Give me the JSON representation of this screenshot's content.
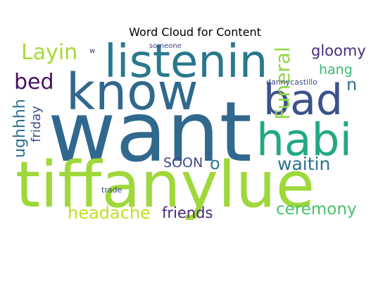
{
  "title": "Word Cloud for Content",
  "colors": {
    "dark_purple": "#440154",
    "indigo": "#3b528b",
    "slate_blue": "#31688e",
    "teal_blue": "#26828e",
    "teal": "#1f9e89",
    "green": "#35b779",
    "lime": "#6ece58",
    "yellow_green": "#b5de2b"
  },
  "words": [
    {
      "id": "want",
      "text": "want",
      "color": "#31688e"
    },
    {
      "id": "tiffanylue",
      "text": "tiffanylue",
      "color": "#9fd83a"
    },
    {
      "id": "know",
      "text": "know",
      "color": "#31688e"
    },
    {
      "id": "listenin",
      "text": "listenin",
      "color": "#2a788e"
    },
    {
      "id": "bad",
      "text": "bad",
      "color": "#3b528b"
    },
    {
      "id": "habi",
      "text": "habi",
      "color": "#22a884"
    },
    {
      "id": "layin",
      "text": "Layin",
      "color": "#a5db36"
    },
    {
      "id": "gloomy",
      "text": "gloomy",
      "color": "#472c7a"
    },
    {
      "id": "hang",
      "text": "hang",
      "color": "#3aba76"
    },
    {
      "id": "bed",
      "text": "bed",
      "color": "#471063"
    },
    {
      "id": "n",
      "text": "n",
      "color": "#2c728e"
    },
    {
      "id": "funeral",
      "text": "Funeral",
      "color": "#8fd744"
    },
    {
      "id": "ughhhh",
      "text": "ughhhh",
      "color": "#2e6f8e"
    },
    {
      "id": "friday",
      "text": "friday",
      "color": "#3a538b"
    },
    {
      "id": "soon",
      "text": "SOON",
      "color": "#3e4a89"
    },
    {
      "id": "o",
      "text": "o",
      "color": "#287c8e"
    },
    {
      "id": "waitin",
      "text": "waitin",
      "color": "#2c718e"
    },
    {
      "id": "headache",
      "text": "headache",
      "color": "#c2df23"
    },
    {
      "id": "friends",
      "text": "friends",
      "color": "#482677"
    },
    {
      "id": "ceremony",
      "text": "ceremony",
      "color": "#4ac16d"
    },
    {
      "id": "someone",
      "text": "someone",
      "color": "#414487"
    },
    {
      "id": "w",
      "text": "w",
      "color": "#46327e"
    },
    {
      "id": "dannycastillo",
      "text": "dannycastillo",
      "color": "#3e4989"
    },
    {
      "id": "trade",
      "text": "trade",
      "color": "#3f4788"
    }
  ]
}
